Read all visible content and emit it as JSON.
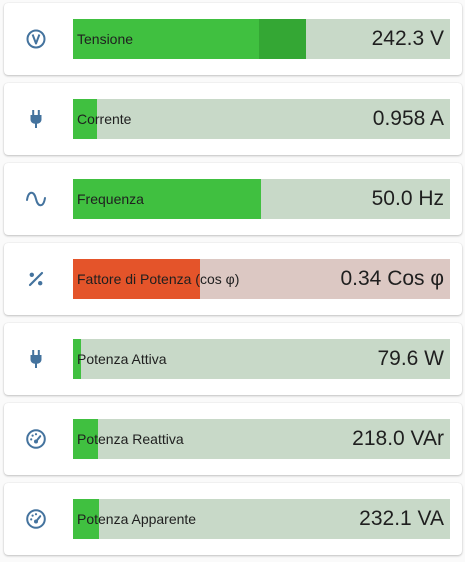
{
  "colors": {
    "icon": "#44739e",
    "track": "#c8d9c8",
    "fill": "#40c040",
    "fill_peak": "#34a734",
    "alert_track": "#dcc8c3",
    "alert_fill": "#e4542a"
  },
  "rows": [
    {
      "icon": "voltage-meter-icon",
      "label": "Tensione",
      "value": "242.3 V",
      "level_percent": 49,
      "peak_percent": 61
    },
    {
      "icon": "plug-icon",
      "label": "Corrente",
      "value": "0.958 A",
      "level_percent": 6
    },
    {
      "icon": "sine-wave-icon",
      "label": "Frequenza",
      "value": "50.0 Hz",
      "level_percent": 50
    },
    {
      "icon": "percent-icon",
      "label": "Fattore di Potenza (cos φ)",
      "value": "0.34 Cos φ",
      "level_percent": 34,
      "alert": true
    },
    {
      "icon": "plug-icon",
      "label": "Potenza Attiva",
      "value": "79.6 W",
      "level_percent": 2
    },
    {
      "icon": "gauge-icon",
      "label": "Potenza Reattiva",
      "value": "218.0 VAr",
      "level_percent": 7
    },
    {
      "icon": "gauge-icon",
      "label": "Potenza Apparente",
      "value": "232.1 VA",
      "level_percent": 7
    }
  ]
}
